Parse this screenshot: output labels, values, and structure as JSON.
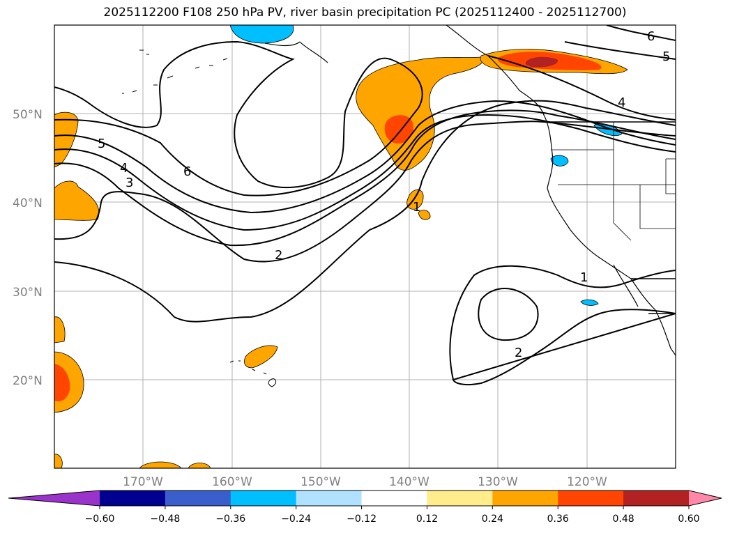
{
  "title": "2025112200 F108 250 hPa PV, river basin precipitation PC (2025112400 - 2025112700)",
  "lat_labels": [
    "50°N",
    "40°N",
    "30°N",
    "20°N"
  ],
  "lon_labels": [
    "170°W",
    "160°W",
    "150°W",
    "140°W",
    "130°W",
    "120°W"
  ],
  "contour_labels": [
    "6",
    "5",
    "4",
    "3",
    "2",
    "1",
    "2",
    "6",
    "5",
    "4",
    "1"
  ],
  "colorbar": {
    "ticks": [
      "−0.60",
      "−0.48",
      "−0.36",
      "−0.24",
      "−0.12",
      "0.12",
      "0.24",
      "0.36",
      "0.48",
      "0.60"
    ],
    "colors": [
      "#9933cc",
      "#000090",
      "#3a5fcd",
      "#00bfff",
      "#b0e2ff",
      "#ffffff",
      "#ffec8b",
      "#ffa500",
      "#ff4500",
      "#b22222",
      "#ff88aa"
    ]
  },
  "colors": {
    "positive_low": "#ffa500",
    "positive_mid": "#ff4500",
    "positive_high": "#b22222",
    "negative": "#00bfff",
    "grid": "#b0b0b0"
  }
}
